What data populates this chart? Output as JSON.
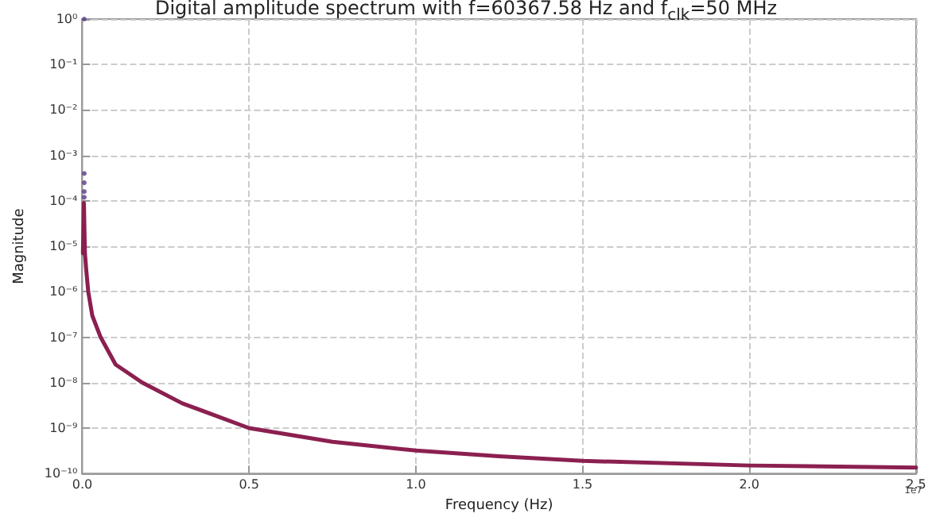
{
  "chart_data": {
    "type": "line",
    "title": "Digital amplitude spectrum with f=60367.58 Hz and f$_{clk}$=50 MHz",
    "xlabel": "Frequency (Hz)",
    "ylabel": "Magnitude",
    "annotations": [
      "1e7"
    ],
    "series": [
      {
        "color": "#8b2050",
        "x": [
          0.002,
          0.005,
          0.008,
          0.012,
          0.018,
          0.03,
          0.055,
          0.1,
          0.18,
          0.3,
          0.5,
          0.75,
          1.0,
          1.25,
          1.5,
          2.0,
          2.5
        ],
        "values": [
          7e-06,
          9e-05,
          7e-06,
          3e-06,
          1e-06,
          3e-07,
          1e-07,
          2.5e-08,
          1e-08,
          3.5e-09,
          1e-09,
          5e-10,
          3.2e-10,
          2.4e-10,
          1.9e-10,
          1.5e-10,
          1.35e-10
        ]
      },
      {
        "type": "scatter",
        "color": "#5a3a8a",
        "marker": "circle",
        "x": [
          0.006,
          0.006,
          0.006,
          0.006,
          0.006
        ],
        "values": [
          1,
          0.0004,
          0.00025,
          0.00016,
          0.00012
        ]
      }
    ],
    "xlim": [
      0,
      2.5
    ],
    "xticks": [
      {
        "value": 0,
        "label": "0.0"
      },
      0.5,
      {
        "value": 1,
        "label": "1.0"
      },
      1.5,
      {
        "value": 2,
        "label": "2.0"
      },
      2.5
    ],
    "ylim": [
      1e-10,
      1
    ],
    "yticks": [
      {
        "value": 1e-10,
        "label": "10⁻¹⁰"
      },
      {
        "value": 1e-09,
        "label": "10⁻⁹"
      },
      {
        "value": 1e-08,
        "label": "10⁻⁸"
      },
      {
        "value": 1e-07,
        "label": "10⁻⁷"
      },
      {
        "value": 1e-06,
        "label": "10⁻⁶"
      },
      {
        "value": 1e-05,
        "label": "10⁻⁵"
      },
      {
        "value": 0.0001,
        "label": "10⁻⁴"
      },
      {
        "value": 0.001,
        "label": "10⁻³"
      },
      {
        "value": 0.01,
        "label": "10⁻²"
      },
      {
        "value": 0.1,
        "label": "10⁻¹"
      },
      {
        "value": 1,
        "label": "10⁰"
      }
    ],
    "log": "y",
    "grid": true,
    "line_style": "solid"
  }
}
